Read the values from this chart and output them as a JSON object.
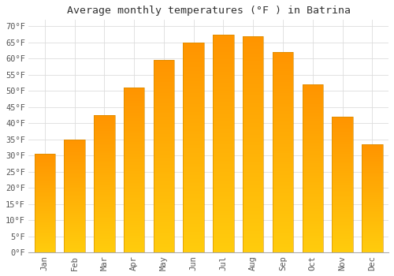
{
  "title": "Average monthly temperatures (°F ) in Batrina",
  "months": [
    "Jan",
    "Feb",
    "Mar",
    "Apr",
    "May",
    "Jun",
    "Jul",
    "Aug",
    "Sep",
    "Oct",
    "Nov",
    "Dec"
  ],
  "values": [
    30.5,
    35.0,
    42.5,
    51.0,
    59.5,
    65.0,
    67.5,
    67.0,
    62.0,
    52.0,
    42.0,
    33.5
  ],
  "bar_color_bottom": "#FFBB00",
  "bar_color_top": "#FFA500",
  "bar_edge_color": "#CC8800",
  "background_color": "#ffffff",
  "grid_color": "#dddddd",
  "ytick_labels": [
    "0°F",
    "5°F",
    "10°F",
    "15°F",
    "20°F",
    "25°F",
    "30°F",
    "35°F",
    "40°F",
    "45°F",
    "50°F",
    "55°F",
    "60°F",
    "65°F",
    "70°F"
  ],
  "ytick_values": [
    0,
    5,
    10,
    15,
    20,
    25,
    30,
    35,
    40,
    45,
    50,
    55,
    60,
    65,
    70
  ],
  "ylim": [
    0,
    72
  ],
  "title_fontsize": 9.5,
  "tick_fontsize": 7.5,
  "font_family": "monospace"
}
